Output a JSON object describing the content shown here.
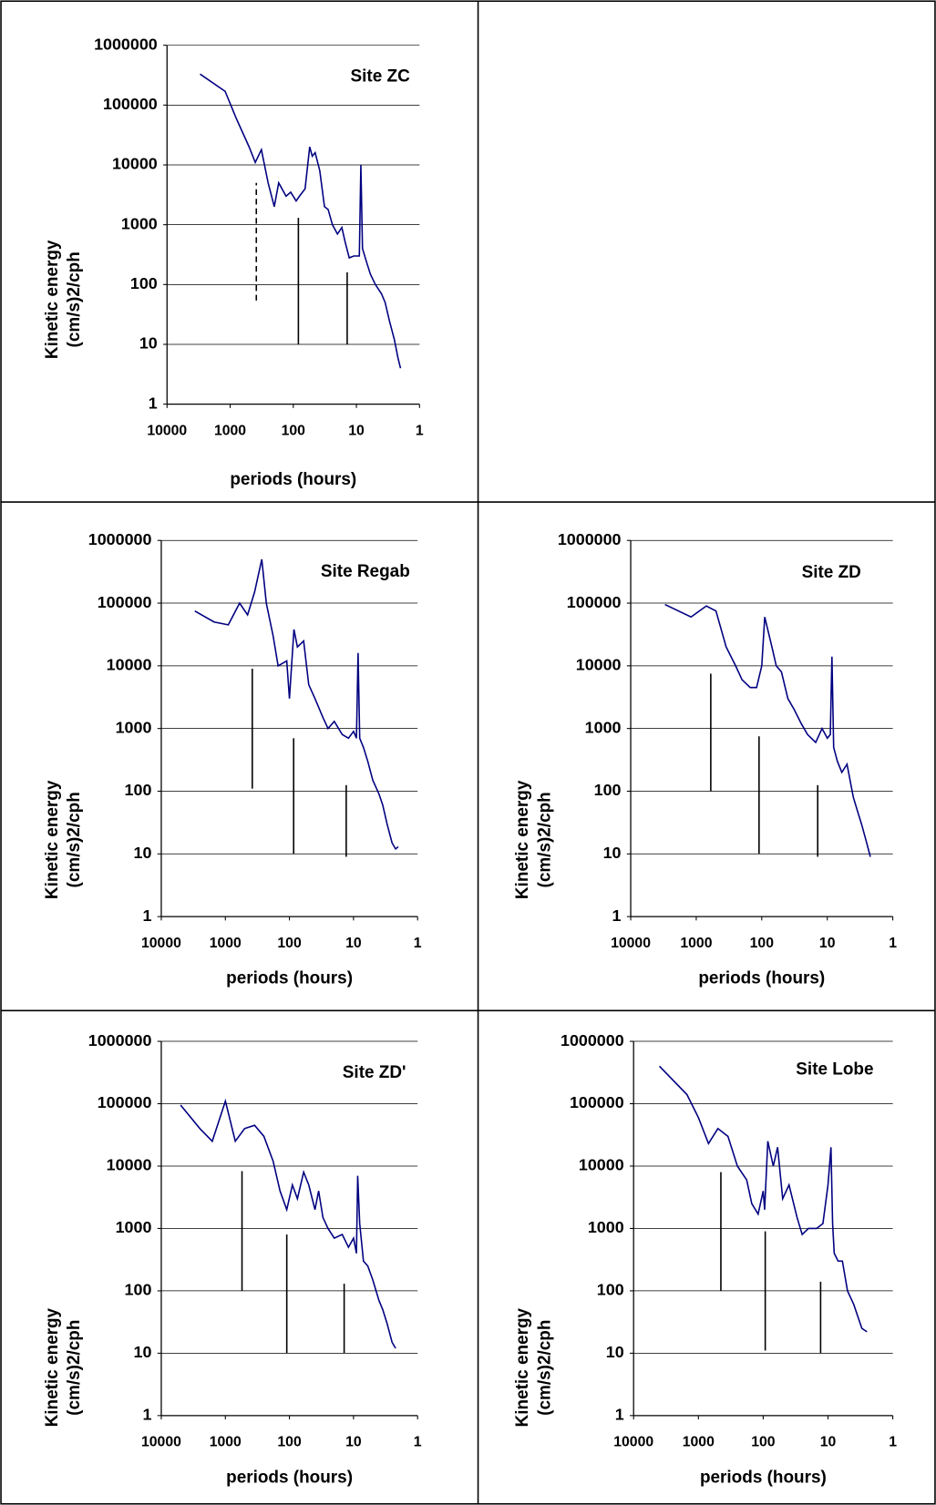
{
  "chart_data": [
    {
      "type": "line",
      "title": "Site ZC",
      "y_label": [
        "Kinetic energy",
        "(cm/s)2/cph"
      ],
      "x_label": "periods (hours)",
      "color": "#000080",
      "log_x": true,
      "log_y": true,
      "grid": true,
      "xlim": [
        10000,
        1
      ],
      "xticks": [
        10000,
        1000,
        100,
        10,
        1
      ],
      "ylim": [
        1,
        1000000
      ],
      "yticks": [
        1,
        10,
        100,
        1000,
        10000,
        100000,
        1000000
      ],
      "x": [
        3000,
        1200,
        800,
        500,
        400,
        320,
        250,
        200,
        170,
        130,
        110,
        90,
        80,
        65,
        55,
        50,
        45,
        38,
        32,
        28,
        24,
        20,
        17,
        15,
        13,
        11,
        9,
        8.5,
        8,
        7,
        6,
        5,
        4,
        3.5,
        3,
        2.5,
        2.2,
        2
      ],
      "values": [
        330000,
        170000,
        60000,
        20000,
        11000,
        18000,
        5000,
        2000,
        5000,
        3000,
        3500,
        2500,
        3000,
        4000,
        20000,
        14000,
        16000,
        8000,
        2000,
        1800,
        1000,
        700,
        900,
        500,
        280,
        300,
        300,
        10000,
        400,
        250,
        150,
        100,
        70,
        50,
        25,
        12,
        6,
        4
      ],
      "markers": [
        {
          "x": 385,
          "y": [
            54,
            5000
          ],
          "dashed": true
        },
        {
          "x": 83,
          "y": [
            10,
            1300
          ],
          "dashed": false
        },
        {
          "x": 14,
          "y": [
            10,
            160
          ],
          "dashed": false
        }
      ]
    },
    {
      "type": "line",
      "title": "Site Regab",
      "y_label": [
        "Kinetic energy",
        "(cm/s)2/cph"
      ],
      "x_label": "periods (hours)",
      "color": "#000080",
      "log_x": true,
      "log_y": true,
      "grid": true,
      "xlim": [
        10000,
        1
      ],
      "xticks": [
        10000,
        1000,
        100,
        10,
        1
      ],
      "ylim": [
        1,
        1000000
      ],
      "yticks": [
        1,
        10,
        100,
        1000,
        10000,
        100000,
        1000000
      ],
      "x": [
        3000,
        1500,
        900,
        600,
        450,
        350,
        270,
        230,
        180,
        150,
        110,
        100,
        85,
        75,
        60,
        50,
        40,
        30,
        25,
        20,
        15,
        12,
        10,
        9,
        8.5,
        8,
        7,
        6,
        5,
        4,
        3.5,
        3,
        2.5,
        2.2,
        2
      ],
      "values": [
        75000,
        50000,
        45000,
        100000,
        65000,
        150000,
        500000,
        100000,
        30000,
        10000,
        12000,
        3000,
        38000,
        20000,
        25000,
        5000,
        3000,
        1500,
        1000,
        1300,
        800,
        700,
        900,
        700,
        16000,
        700,
        500,
        300,
        150,
        90,
        60,
        30,
        15,
        12,
        13
      ],
      "markers": [
        {
          "x": 380,
          "y": [
            110,
            9000
          ],
          "dashed": false
        },
        {
          "x": 86,
          "y": [
            10,
            700
          ],
          "dashed": false
        },
        {
          "x": 13,
          "y": [
            9,
            125
          ],
          "dashed": false
        }
      ]
    },
    {
      "type": "line",
      "title": "Site ZD",
      "y_label": [
        "Kinetic energy",
        "(cm/s)2/cph"
      ],
      "x_label": "periods (hours)",
      "color": "#000080",
      "log_x": true,
      "log_y": true,
      "grid": true,
      "xlim": [
        10000,
        1
      ],
      "xticks": [
        10000,
        1000,
        100,
        10,
        1
      ],
      "ylim": [
        1,
        1000000
      ],
      "yticks": [
        1,
        10,
        100,
        1000,
        10000,
        100000,
        1000000
      ],
      "x": [
        3000,
        1200,
        700,
        500,
        350,
        250,
        200,
        150,
        120,
        100,
        90,
        70,
        60,
        50,
        40,
        32,
        25,
        20,
        15,
        12,
        10,
        9,
        8.5,
        8,
        7,
        6,
        5,
        4,
        3.5,
        3,
        2.5,
        2.2
      ],
      "values": [
        95000,
        60000,
        90000,
        75000,
        20000,
        10000,
        6000,
        4500,
        4500,
        10000,
        60000,
        20000,
        10000,
        8000,
        3000,
        2000,
        1200,
        800,
        600,
        1000,
        700,
        800,
        14000,
        500,
        300,
        200,
        270,
        80,
        50,
        30,
        15,
        9
      ],
      "markers": [
        {
          "x": 600,
          "y": [
            100,
            7500
          ],
          "dashed": false
        },
        {
          "x": 110,
          "y": [
            10,
            750
          ],
          "dashed": false
        },
        {
          "x": 14,
          "y": [
            9,
            125
          ],
          "dashed": false
        }
      ]
    },
    {
      "type": "line",
      "title": "Site ZD'",
      "y_label": [
        "Kinetic energy",
        "(cm/s)2/cph"
      ],
      "x_label": "periods (hours)",
      "color": "#000080",
      "log_x": true,
      "log_y": true,
      "grid": true,
      "xlim": [
        10000,
        1
      ],
      "xticks": [
        10000,
        1000,
        100,
        10,
        1
      ],
      "ylim": [
        1,
        1000000
      ],
      "yticks": [
        1,
        10,
        100,
        1000,
        10000,
        100000,
        1000000
      ],
      "x": [
        5000,
        2500,
        1600,
        1000,
        700,
        500,
        350,
        250,
        180,
        140,
        110,
        90,
        75,
        60,
        50,
        40,
        35,
        30,
        25,
        20,
        15,
        12,
        10,
        9,
        8.6,
        8,
        7,
        6,
        5,
        4,
        3.5,
        3,
        2.5,
        2.2
      ],
      "values": [
        95000,
        40000,
        25000,
        110000,
        25000,
        40000,
        45000,
        30000,
        12000,
        4000,
        2000,
        5000,
        3000,
        8000,
        5000,
        2000,
        4000,
        1500,
        1000,
        700,
        800,
        500,
        700,
        400,
        7000,
        1200,
        300,
        250,
        150,
        70,
        50,
        30,
        15,
        12
      ],
      "markers": [
        {
          "x": 550,
          "y": [
            100,
            8300
          ],
          "dashed": false
        },
        {
          "x": 110,
          "y": [
            10,
            800
          ],
          "dashed": false
        },
        {
          "x": 14,
          "y": [
            10,
            130
          ],
          "dashed": false
        }
      ]
    },
    {
      "type": "line",
      "title": "Site Lobe",
      "y_label": [
        "Kinetic energy",
        "(cm/s)2/cph"
      ],
      "x_label": "periods (hours)",
      "color": "#000080",
      "log_x": true,
      "log_y": true,
      "grid": true,
      "xlim": [
        10000,
        1
      ],
      "xticks": [
        10000,
        1000,
        100,
        10,
        1
      ],
      "ylim": [
        1,
        1000000
      ],
      "yticks": [
        1,
        10,
        100,
        1000,
        10000,
        100000,
        1000000
      ],
      "x": [
        4000,
        1500,
        1000,
        700,
        500,
        350,
        250,
        180,
        150,
        120,
        100,
        95,
        85,
        70,
        60,
        50,
        40,
        30,
        25,
        20,
        15,
        12,
        10,
        9,
        8.5,
        8,
        7,
        6,
        5,
        4,
        3.5,
        3,
        2.5
      ],
      "values": [
        400000,
        140000,
        60000,
        23000,
        40000,
        30000,
        10000,
        6000,
        2500,
        1700,
        4000,
        2000,
        25000,
        10000,
        20000,
        3000,
        5000,
        1500,
        800,
        1000,
        1000,
        1200,
        5000,
        20000,
        1200,
        400,
        300,
        300,
        100,
        60,
        40,
        25,
        22
      ],
      "markers": [
        {
          "x": 450,
          "y": [
            100,
            8000
          ],
          "dashed": false
        },
        {
          "x": 93,
          "y": [
            11,
            900
          ],
          "dashed": false
        },
        {
          "x": 13,
          "y": [
            10,
            140
          ],
          "dashed": false
        }
      ]
    }
  ]
}
